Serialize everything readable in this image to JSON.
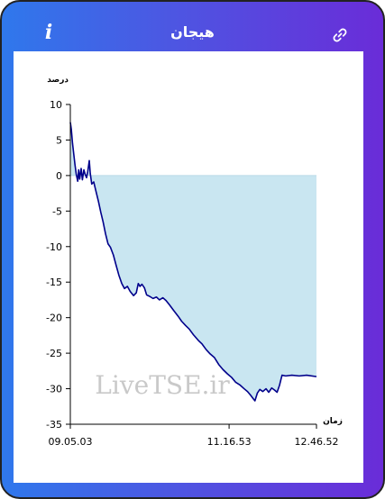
{
  "window": {
    "title": "هیجان",
    "info_icon": "info-icon",
    "link_icon": "link-icon"
  },
  "watermark": "LiveTSE.ir",
  "chart_data": {
    "type": "area",
    "title": "",
    "ylabel": "درصد",
    "xlabel": "زمان",
    "ylim": [
      -35,
      10
    ],
    "yticks": [
      10,
      5,
      0,
      -5,
      -10,
      -15,
      -20,
      -25,
      -30,
      -35
    ],
    "xticks": [
      "09.05.03",
      "11.16.53",
      "12.46.52"
    ],
    "grid": false,
    "line_color": "#00008b",
    "fill_color": "#c6e5f0",
    "series": [
      {
        "points": [
          [
            0.0,
            7.5
          ],
          [
            0.004,
            6.5
          ],
          [
            0.009,
            4.5
          ],
          [
            0.014,
            3.0
          ],
          [
            0.019,
            1.5
          ],
          [
            0.024,
            0.2
          ],
          [
            0.03,
            -0.8
          ],
          [
            0.034,
            0.8
          ],
          [
            0.038,
            -0.5
          ],
          [
            0.044,
            1.0
          ],
          [
            0.049,
            -0.6
          ],
          [
            0.055,
            0.8
          ],
          [
            0.06,
            0.2
          ],
          [
            0.066,
            -0.3
          ],
          [
            0.071,
            0.6
          ],
          [
            0.077,
            2.1
          ],
          [
            0.081,
            0.3
          ],
          [
            0.087,
            -1.2
          ],
          [
            0.095,
            -0.9
          ],
          [
            0.104,
            -2.2
          ],
          [
            0.114,
            -3.6
          ],
          [
            0.124,
            -5.2
          ],
          [
            0.133,
            -6.5
          ],
          [
            0.143,
            -8.2
          ],
          [
            0.153,
            -9.6
          ],
          [
            0.163,
            -10.1
          ],
          [
            0.175,
            -11.2
          ],
          [
            0.185,
            -12.5
          ],
          [
            0.197,
            -14.0
          ],
          [
            0.209,
            -15.2
          ],
          [
            0.22,
            -15.9
          ],
          [
            0.232,
            -15.6
          ],
          [
            0.243,
            -16.3
          ],
          [
            0.257,
            -16.9
          ],
          [
            0.268,
            -16.5
          ],
          [
            0.276,
            -15.2
          ],
          [
            0.283,
            -15.6
          ],
          [
            0.291,
            -15.3
          ],
          [
            0.301,
            -15.8
          ],
          [
            0.31,
            -16.8
          ],
          [
            0.322,
            -17.0
          ],
          [
            0.336,
            -17.3
          ],
          [
            0.35,
            -17.1
          ],
          [
            0.362,
            -17.5
          ],
          [
            0.376,
            -17.2
          ],
          [
            0.389,
            -17.6
          ],
          [
            0.403,
            -18.2
          ],
          [
            0.42,
            -19.0
          ],
          [
            0.438,
            -19.8
          ],
          [
            0.452,
            -20.5
          ],
          [
            0.468,
            -21.1
          ],
          [
            0.483,
            -21.6
          ],
          [
            0.5,
            -22.4
          ],
          [
            0.52,
            -23.2
          ],
          [
            0.535,
            -23.7
          ],
          [
            0.552,
            -24.5
          ],
          [
            0.568,
            -25.1
          ],
          [
            0.585,
            -25.6
          ],
          [
            0.603,
            -26.6
          ],
          [
            0.62,
            -27.3
          ],
          [
            0.638,
            -27.9
          ],
          [
            0.655,
            -28.4
          ],
          [
            0.672,
            -29.1
          ],
          [
            0.69,
            -29.5
          ],
          [
            0.706,
            -30.0
          ],
          [
            0.72,
            -30.4
          ],
          [
            0.732,
            -30.9
          ],
          [
            0.743,
            -31.4
          ],
          [
            0.75,
            -31.7
          ],
          [
            0.76,
            -30.6
          ],
          [
            0.77,
            -30.1
          ],
          [
            0.782,
            -30.4
          ],
          [
            0.795,
            -30.0
          ],
          [
            0.806,
            -30.5
          ],
          [
            0.818,
            -29.9
          ],
          [
            0.83,
            -30.2
          ],
          [
            0.84,
            -30.5
          ],
          [
            0.85,
            -29.5
          ],
          [
            0.86,
            -28.1
          ],
          [
            0.875,
            -28.2
          ],
          [
            0.9,
            -28.1
          ],
          [
            0.93,
            -28.2
          ],
          [
            0.96,
            -28.1
          ],
          [
            1.0,
            -28.3
          ]
        ]
      }
    ]
  }
}
